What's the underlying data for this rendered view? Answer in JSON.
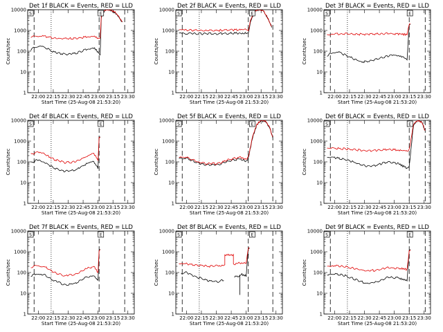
{
  "figure": {
    "xlabel": "Start Time (25-Aug-08 21:53:20)",
    "ylabel": "Counts/sec"
  },
  "chart_data": [
    {
      "type": "line",
      "title": "Det 1f BLACK = Events, RED = LLD",
      "x_ticks": [
        "22:00",
        "22:15",
        "22:30",
        "22:45",
        "23:00",
        "23:15",
        "23:30"
      ],
      "y_ticks": [
        "1",
        "10",
        "100",
        "1000",
        "10000"
      ],
      "ylim": [
        1,
        10000
      ],
      "y_scale": "log",
      "dashed_x": [
        0.06,
        0.67,
        0.91
      ],
      "dotted_x": [
        0.22
      ],
      "markers": [
        {
          "label": "S",
          "x": 0.02
        },
        {
          "label": "E",
          "x": 0.68
        }
      ],
      "series": [
        {
          "name": "Events",
          "color": "#000000",
          "x": [
            0.02,
            0.03,
            0.08,
            0.15,
            0.25,
            0.35,
            0.45,
            0.55,
            0.62,
            0.66,
            0.68,
            0.69,
            0.71,
            0.74,
            0.78,
            0.82,
            0.86,
            0.89
          ],
          "y": [
            null,
            120,
            170,
            155,
            90,
            70,
            80,
            120,
            150,
            90,
            70,
            4000,
            8000,
            10000,
            9500,
            7000,
            4000,
            2500
          ]
        },
        {
          "name": "LLD",
          "color": "#e00000",
          "x": [
            0.02,
            0.03,
            0.08,
            0.15,
            0.25,
            0.35,
            0.45,
            0.55,
            0.62,
            0.66,
            0.68,
            0.69,
            0.71,
            0.74,
            0.78,
            0.82,
            0.86,
            0.89
          ],
          "y": [
            null,
            480,
            560,
            520,
            420,
            400,
            420,
            480,
            540,
            430,
            400,
            4500,
            8500,
            10000,
            9800,
            7500,
            4200,
            2500
          ]
        }
      ]
    },
    {
      "type": "line",
      "title": "Det 2f BLACK = Events, RED = LLD",
      "x_ticks": [
        "22:00",
        "22:15",
        "22:30",
        "22:45",
        "23:00",
        "23:15",
        "23:30"
      ],
      "y_ticks": [
        "1",
        "10",
        "100",
        "1000",
        "10000"
      ],
      "ylim": [
        1,
        10000
      ],
      "y_scale": "log",
      "dashed_x": [
        0.06,
        0.68,
        0.91
      ],
      "dotted_x": [
        0.22
      ],
      "markers": [
        {
          "label": "S",
          "x": 0.02
        },
        {
          "label": "E",
          "x": 0.71
        }
      ],
      "series": [
        {
          "name": "Events",
          "color": "#000000",
          "x": [
            0.02,
            0.03,
            0.1,
            0.2,
            0.3,
            0.4,
            0.5,
            0.6,
            0.66,
            0.68,
            0.7,
            0.74,
            0.78,
            0.82,
            0.86,
            0.9
          ],
          "y": [
            null,
            700,
            720,
            700,
            690,
            700,
            720,
            740,
            760,
            700,
            2500,
            8000,
            10000,
            9000,
            4000,
            1500
          ]
        },
        {
          "name": "LLD",
          "color": "#e00000",
          "x": [
            0.02,
            0.03,
            0.1,
            0.2,
            0.3,
            0.4,
            0.5,
            0.6,
            0.66,
            0.68,
            0.7,
            0.74,
            0.78,
            0.82,
            0.86,
            0.9
          ],
          "y": [
            null,
            1000,
            1050,
            1000,
            980,
            1000,
            1050,
            1080,
            1100,
            1000,
            3000,
            8500,
            10000,
            9200,
            4200,
            1500
          ]
        }
      ]
    },
    {
      "type": "line",
      "title": "Det 3f BLACK = Events, RED = LLD",
      "x_ticks": [
        "22:00",
        "22:15",
        "22:30",
        "22:45",
        "23:00",
        "23:15",
        "23:30"
      ],
      "y_ticks": [
        "1",
        "10",
        "100",
        "1000",
        "10000"
      ],
      "ylim": [
        1,
        10000
      ],
      "y_scale": "log",
      "dashed_x": [
        0.06,
        0.8,
        0.95
      ],
      "dotted_x": [
        0.22
      ],
      "markers": [
        {
          "label": "S",
          "x": 0.02
        },
        {
          "label": "E",
          "x": 0.8
        }
      ],
      "series": [
        {
          "name": "Events",
          "color": "#000000",
          "x": [
            0.02,
            0.03,
            0.08,
            0.15,
            0.25,
            0.35,
            0.45,
            0.55,
            0.65,
            0.72,
            0.78,
            0.8,
            0.81
          ],
          "y": [
            null,
            60,
            90,
            85,
            50,
            30,
            35,
            50,
            70,
            60,
            40,
            2000,
            2000
          ]
        },
        {
          "name": "LLD",
          "color": "#e00000",
          "x": [
            0.02,
            0.03,
            0.1,
            0.2,
            0.3,
            0.4,
            0.5,
            0.6,
            0.7,
            0.78,
            0.8,
            0.81
          ],
          "y": [
            null,
            650,
            700,
            680,
            660,
            650,
            680,
            700,
            680,
            640,
            2000,
            2000
          ]
        }
      ]
    },
    {
      "type": "line",
      "title": "Det 4f BLACK = Events, RED = LLD",
      "x_ticks": [
        "22:00",
        "22:15",
        "22:30",
        "22:45",
        "23:00",
        "23:15",
        "23:30"
      ],
      "y_ticks": [
        "1",
        "10",
        "100",
        "1000",
        "10000"
      ],
      "ylim": [
        1,
        10000
      ],
      "y_scale": "log",
      "dashed_x": [
        0.06,
        0.67,
        0.91
      ],
      "dotted_x": [
        0.22
      ],
      "markers": [
        {
          "label": "S",
          "x": 0.02
        },
        {
          "label": "E",
          "x": 0.68
        }
      ],
      "series": [
        {
          "name": "Events",
          "color": "#000000",
          "x": [
            0.02,
            0.03,
            0.08,
            0.15,
            0.25,
            0.35,
            0.45,
            0.55,
            0.62,
            0.66,
            0.67,
            0.68
          ],
          "y": [
            null,
            90,
            120,
            100,
            50,
            35,
            40,
            80,
            100,
            50,
            1500,
            1500
          ]
        },
        {
          "name": "LLD",
          "color": "#e00000",
          "x": [
            0.02,
            0.03,
            0.08,
            0.15,
            0.25,
            0.35,
            0.45,
            0.55,
            0.62,
            0.66,
            0.67,
            0.68
          ],
          "y": [
            null,
            230,
            280,
            250,
            130,
            90,
            100,
            180,
            260,
            120,
            1500,
            1500
          ]
        }
      ]
    },
    {
      "type": "line",
      "title": "Det 5f BLACK = Events, RED = LLD",
      "x_ticks": [
        "22:00",
        "22:15",
        "22:30",
        "22:45",
        "23:00",
        "23:15",
        "23:30"
      ],
      "y_ticks": [
        "1",
        "10",
        "100",
        "1000",
        "10000"
      ],
      "ylim": [
        1,
        10000
      ],
      "y_scale": "log",
      "dashed_x": [
        0.06,
        0.68,
        0.91
      ],
      "dotted_x": [
        0.22
      ],
      "markers": [
        {
          "label": "S",
          "x": 0.02
        },
        {
          "label": "E",
          "x": 0.71
        }
      ],
      "series": [
        {
          "name": "Events",
          "color": "#000000",
          "x": [
            0.02,
            0.03,
            0.1,
            0.2,
            0.3,
            0.4,
            0.5,
            0.6,
            0.66,
            0.68,
            0.72,
            0.76,
            0.8,
            0.84,
            0.88,
            0.91
          ],
          "y": [
            null,
            160,
            150,
            90,
            70,
            75,
            110,
            140,
            110,
            150,
            1500,
            6000,
            9500,
            9000,
            4500,
            1500
          ]
        },
        {
          "name": "LLD",
          "color": "#e00000",
          "x": [
            0.02,
            0.03,
            0.1,
            0.2,
            0.3,
            0.4,
            0.5,
            0.6,
            0.66,
            0.68,
            0.72,
            0.76,
            0.8,
            0.84,
            0.88,
            0.91
          ],
          "y": [
            null,
            180,
            170,
            100,
            80,
            85,
            130,
            165,
            130,
            170,
            1700,
            6500,
            10000,
            9500,
            4800,
            1500
          ]
        }
      ]
    },
    {
      "type": "line",
      "title": "Det 6f BLACK = Events, RED = LLD",
      "x_ticks": [
        "22:00",
        "22:15",
        "22:30",
        "22:45",
        "23:00",
        "23:15",
        "23:30"
      ],
      "y_ticks": [
        "1",
        "10",
        "100",
        "1000",
        "10000"
      ],
      "ylim": [
        1,
        10000
      ],
      "y_scale": "log",
      "dashed_x": [
        0.06,
        0.8,
        0.95
      ],
      "dotted_x": [
        0.22
      ],
      "markers": [
        {
          "label": "S",
          "x": 0.02
        },
        {
          "label": "E",
          "x": 0.8
        }
      ],
      "series": [
        {
          "name": "Events",
          "color": "#000000",
          "x": [
            0.02,
            0.03,
            0.1,
            0.2,
            0.3,
            0.4,
            0.5,
            0.6,
            0.7,
            0.78,
            0.8,
            0.84,
            0.88,
            0.92,
            0.95
          ],
          "y": [
            null,
            150,
            160,
            130,
            90,
            60,
            70,
            100,
            80,
            50,
            60,
            6000,
            10000,
            8000,
            3000
          ]
        },
        {
          "name": "LLD",
          "color": "#e00000",
          "x": [
            0.02,
            0.03,
            0.1,
            0.2,
            0.3,
            0.4,
            0.5,
            0.6,
            0.7,
            0.78,
            0.8,
            0.84,
            0.88,
            0.92,
            0.95
          ],
          "y": [
            null,
            420,
            450,
            420,
            380,
            340,
            360,
            400,
            370,
            330,
            380,
            6500,
            10000,
            8200,
            3000
          ]
        }
      ]
    },
    {
      "type": "line",
      "title": "Det 7f BLACK = Events, RED = LLD",
      "x_ticks": [
        "22:00",
        "22:15",
        "22:30",
        "22:45",
        "23:00",
        "23:15",
        "23:30"
      ],
      "y_ticks": [
        "1",
        "10",
        "100",
        "1000",
        "10000"
      ],
      "ylim": [
        1,
        10000
      ],
      "y_scale": "log",
      "dashed_x": [
        0.06,
        0.67,
        0.91
      ],
      "dotted_x": [
        0.22
      ],
      "markers": [
        {
          "label": "S",
          "x": 0.02
        },
        {
          "label": "E",
          "x": 0.68
        }
      ],
      "series": [
        {
          "name": "Events",
          "color": "#000000",
          "x": [
            0.02,
            0.03,
            0.08,
            0.15,
            0.25,
            0.35,
            0.45,
            0.55,
            0.62,
            0.66,
            0.67,
            0.68
          ],
          "y": [
            null,
            70,
            90,
            80,
            40,
            25,
            30,
            60,
            75,
            40,
            1200,
            1200
          ]
        },
        {
          "name": "LLD",
          "color": "#e00000",
          "x": [
            0.02,
            0.03,
            0.08,
            0.15,
            0.25,
            0.35,
            0.45,
            0.55,
            0.62,
            0.66,
            0.67,
            0.68
          ],
          "y": [
            null,
            180,
            220,
            200,
            100,
            70,
            80,
            150,
            200,
            100,
            1200,
            1200
          ]
        }
      ]
    },
    {
      "type": "line",
      "title": "Det 8f BLACK = Events, RED = LLD",
      "x_ticks": [
        "22:00",
        "22:15",
        "22:30",
        "22:45",
        "23:00",
        "23:15",
        "23:30"
      ],
      "y_ticks": [
        "1",
        "10",
        "100",
        "1000",
        "10000"
      ],
      "ylim": [
        1,
        10000
      ],
      "y_scale": "log",
      "dashed_x": [
        0.06,
        0.68,
        0.91
      ],
      "dotted_x": [
        0.22
      ],
      "markers": [
        {
          "label": "S",
          "x": 0.02
        },
        {
          "label": "E",
          "x": 0.71
        }
      ],
      "series": [
        {
          "name": "Events",
          "color": "#000000",
          "x": [
            0.04,
            0.05,
            0.1,
            0.2,
            0.3,
            0.4,
            0.45,
            0.5,
            0.55,
            0.6,
            0.6,
            0.6,
            0.62,
            0.66,
            0.68,
            0.69
          ],
          "y": [
            null,
            90,
            100,
            60,
            40,
            35,
            45,
            null,
            60,
            70,
            8,
            70,
            80,
            70,
            1500,
            1500
          ]
        },
        {
          "name": "LLD",
          "color": "#e00000",
          "x": [
            0.02,
            0.03,
            0.1,
            0.2,
            0.3,
            0.4,
            0.46,
            0.46,
            0.5,
            0.54,
            0.54,
            0.6,
            0.66,
            0.68,
            0.69
          ],
          "y": [
            null,
            250,
            260,
            220,
            200,
            210,
            230,
            700,
            700,
            700,
            250,
            300,
            280,
            1500,
            1500
          ]
        }
      ]
    },
    {
      "type": "line",
      "title": "Det 9f BLACK = Events, RED = LLD",
      "x_ticks": [
        "22:00",
        "22:15",
        "22:30",
        "22:45",
        "23:00",
        "23:15",
        "23:30"
      ],
      "y_ticks": [
        "1",
        "10",
        "100",
        "1000",
        "10000"
      ],
      "ylim": [
        1,
        10000
      ],
      "y_scale": "log",
      "dashed_x": [
        0.06,
        0.8,
        0.95
      ],
      "dotted_x": [
        0.22
      ],
      "markers": [
        {
          "label": "S",
          "x": 0.02
        },
        {
          "label": "E",
          "x": 0.8
        }
      ],
      "series": [
        {
          "name": "Events",
          "color": "#000000",
          "x": [
            0.02,
            0.03,
            0.1,
            0.2,
            0.3,
            0.4,
            0.5,
            0.6,
            0.7,
            0.78,
            0.8,
            0.81
          ],
          "y": [
            null,
            80,
            90,
            70,
            45,
            30,
            35,
            60,
            55,
            40,
            1200,
            1200
          ]
        },
        {
          "name": "LLD",
          "color": "#e00000",
          "x": [
            0.02,
            0.03,
            0.1,
            0.2,
            0.3,
            0.4,
            0.5,
            0.6,
            0.7,
            0.78,
            0.8,
            0.81
          ],
          "y": [
            null,
            200,
            220,
            190,
            150,
            120,
            130,
            170,
            160,
            140,
            1200,
            1200
          ]
        }
      ]
    }
  ]
}
